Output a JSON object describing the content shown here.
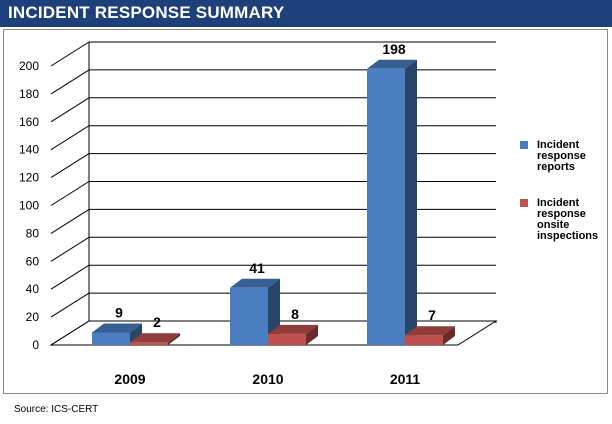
{
  "header": {
    "title": "INCIDENT RESPONSE SUMMARY"
  },
  "footer": {
    "source": "Source: ICS-CERT"
  },
  "colors": {
    "header_bg": "#1d3f7a",
    "series_reports": "#4a7ec1",
    "series_inspections": "#c0504d"
  },
  "chart_data": {
    "type": "bar",
    "title": "",
    "xlabel": "",
    "ylabel": "",
    "categories": [
      "2009",
      "2010",
      "2011"
    ],
    "series": [
      {
        "name": "Incident response reports",
        "values": [
          9,
          41,
          198
        ],
        "color": "#4a7ec1"
      },
      {
        "name": "Incident response onsite inspections",
        "values": [
          2,
          8,
          7
        ],
        "color": "#c0504d"
      }
    ],
    "ylim": [
      0,
      200
    ],
    "yticks": [
      "0",
      "20",
      "40",
      "60",
      "80",
      "100",
      "120",
      "140",
      "160",
      "180",
      "200"
    ],
    "grid": true,
    "legend_position": "right",
    "legend_labels": [
      [
        "Incident",
        "response",
        "reports"
      ],
      [
        "Incident",
        "response",
        "onsite",
        "inspections"
      ]
    ]
  }
}
